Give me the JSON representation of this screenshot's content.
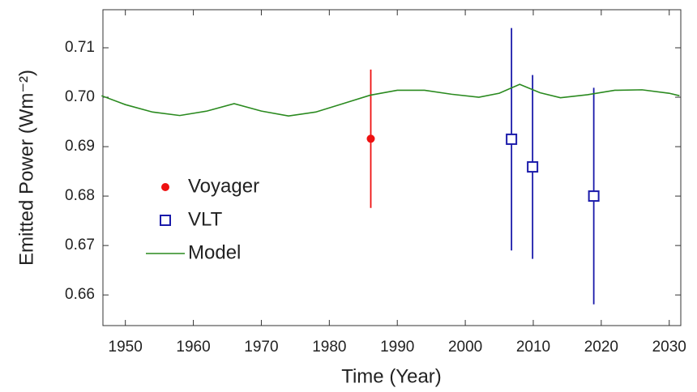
{
  "chart_data": {
    "type": "errorbar",
    "xlabel": "Time (Year)",
    "ylabel": "Emitted Power (Wm⁻²)",
    "xlim": [
      1946.7,
      2031.7
    ],
    "ylim": [
      0.6538,
      0.7177
    ],
    "xticks": [
      1950,
      1960,
      1970,
      1980,
      1990,
      2000,
      2010,
      2020,
      2030
    ],
    "yticks": [
      0.66,
      0.67,
      0.68,
      0.69,
      {
        "value": 0.7,
        "label": "0.70"
      },
      0.71
    ],
    "legend": "left",
    "series": [
      {
        "name": "Voyager",
        "color": "#ee1111",
        "marker": "circle",
        "x": [
          1986.1
        ],
        "values": [
          0.6916
        ],
        "errors": [
          0.014
        ]
      },
      {
        "name": "VLT",
        "color": "#1a1aaa",
        "marker": "square",
        "x": [
          2006.8,
          2009.9,
          2018.9
        ],
        "values": [
          0.6915,
          0.6859,
          0.68
        ],
        "errors": [
          0.0225,
          0.0186,
          0.0219
        ]
      },
      {
        "name": "Model",
        "color": "#2a8a1f",
        "marker": "line",
        "x": [
          1946.5,
          1950,
          1954,
          1958,
          1962,
          1966,
          1970,
          1974,
          1978,
          1982,
          1986,
          1990,
          1994,
          1998,
          2002,
          2005,
          2008,
          2011,
          2014,
          2018,
          2022,
          2026,
          2030,
          2031.5
        ],
        "values": [
          0.7003,
          0.6985,
          0.697,
          0.6963,
          0.6972,
          0.6987,
          0.6972,
          0.6962,
          0.697,
          0.6987,
          0.7004,
          0.7014,
          0.7014,
          0.7006,
          0.7,
          0.7008,
          0.7026,
          0.7009,
          0.6999,
          0.7005,
          0.7014,
          0.7015,
          0.7008,
          0.7003
        ]
      }
    ]
  }
}
